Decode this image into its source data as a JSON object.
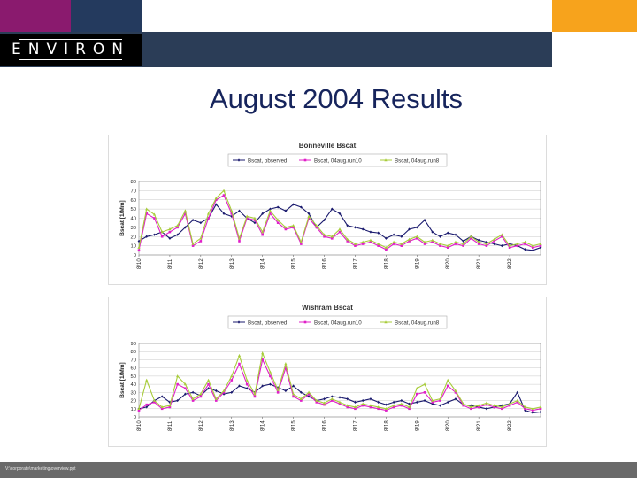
{
  "header": {
    "logo_text": "ENVIRON",
    "colors": {
      "purple": "#8a1a6e",
      "navy": "#2b3d57",
      "orange": "#f7a31c"
    }
  },
  "slide": {
    "title": "August 2004 Results"
  },
  "footer": {
    "path": "V:\\corporate\\marketing\\overview.ppt"
  },
  "chart_data": [
    {
      "type": "line",
      "title": "Bonneville Bscat",
      "ylabel": "Bscat [1/Mm]",
      "xlabel": "",
      "ylim": [
        0,
        80
      ],
      "yticks": [
        0,
        10,
        20,
        30,
        40,
        50,
        60,
        70,
        80
      ],
      "xlim": [
        0,
        13
      ],
      "xticks": [
        "8/10",
        "8/11",
        "8/12",
        "8/13",
        "8/14",
        "8/15",
        "8/16",
        "8/17",
        "8/18",
        "8/19",
        "8/20",
        "8/21",
        "8/22"
      ],
      "legend_position": "top",
      "series": [
        {
          "name": "Bscat, observed",
          "color": "#1a1a6e",
          "marker": "diamond",
          "x": [
            0,
            0.25,
            0.5,
            0.75,
            1,
            1.25,
            1.5,
            1.75,
            2,
            2.25,
            2.5,
            2.75,
            3,
            3.25,
            3.5,
            3.75,
            4,
            4.25,
            4.5,
            4.75,
            5,
            5.25,
            5.5,
            5.75,
            6,
            6.25,
            6.5,
            6.75,
            7,
            7.25,
            7.5,
            7.75,
            8,
            8.25,
            8.5,
            8.75,
            9,
            9.25,
            9.5,
            9.75,
            10,
            10.25,
            10.5,
            10.75,
            11,
            11.25,
            11.5,
            11.75,
            12,
            12.25,
            12.5,
            12.75,
            13
          ],
          "y": [
            15,
            20,
            22,
            25,
            18,
            22,
            30,
            38,
            35,
            40,
            55,
            45,
            42,
            48,
            40,
            35,
            45,
            50,
            52,
            48,
            55,
            52,
            45,
            30,
            38,
            50,
            45,
            32,
            30,
            28,
            25,
            24,
            18,
            22,
            20,
            28,
            30,
            38,
            25,
            20,
            24,
            22,
            15,
            20,
            16,
            14,
            12,
            10,
            12,
            10,
            6,
            5,
            8
          ]
        },
        {
          "name": "Bscat, 04aug.run10",
          "color": "#e020c8",
          "marker": "square",
          "x": [
            0,
            0.25,
            0.5,
            0.75,
            1,
            1.25,
            1.5,
            1.75,
            2,
            2.25,
            2.5,
            2.75,
            3,
            3.25,
            3.5,
            3.75,
            4,
            4.25,
            4.5,
            4.75,
            5,
            5.25,
            5.5,
            5.75,
            6,
            6.25,
            6.5,
            6.75,
            7,
            7.25,
            7.5,
            7.75,
            8,
            8.25,
            8.5,
            8.75,
            9,
            9.25,
            9.5,
            9.75,
            10,
            10.25,
            10.5,
            10.75,
            11,
            11.25,
            11.5,
            11.75,
            12,
            12.25,
            12.5,
            12.75,
            13
          ],
          "y": [
            5,
            45,
            40,
            20,
            25,
            30,
            45,
            10,
            15,
            40,
            60,
            65,
            45,
            15,
            40,
            38,
            22,
            45,
            35,
            28,
            30,
            12,
            40,
            30,
            20,
            18,
            25,
            15,
            10,
            12,
            14,
            10,
            6,
            12,
            10,
            15,
            18,
            12,
            14,
            10,
            8,
            12,
            10,
            18,
            12,
            10,
            15,
            20,
            8,
            10,
            12,
            8,
            10
          ]
        },
        {
          "name": "Bscat, 04aug.run8",
          "color": "#a8cc3a",
          "marker": "triangle",
          "x": [
            0,
            0.25,
            0.5,
            0.75,
            1,
            1.25,
            1.5,
            1.75,
            2,
            2.25,
            2.5,
            2.75,
            3,
            3.25,
            3.5,
            3.75,
            4,
            4.25,
            4.5,
            4.75,
            5,
            5.25,
            5.5,
            5.75,
            6,
            6.25,
            6.5,
            6.75,
            7,
            7.25,
            7.5,
            7.75,
            8,
            8.25,
            8.5,
            8.75,
            9,
            9.25,
            9.5,
            9.75,
            10,
            10.25,
            10.5,
            10.75,
            11,
            11.25,
            11.5,
            11.75,
            12,
            12.25,
            12.5,
            12.75,
            13
          ],
          "y": [
            8,
            50,
            44,
            25,
            28,
            32,
            48,
            12,
            18,
            45,
            62,
            70,
            48,
            18,
            42,
            40,
            25,
            48,
            38,
            30,
            32,
            14,
            42,
            32,
            22,
            20,
            28,
            17,
            12,
            14,
            16,
            12,
            8,
            14,
            12,
            17,
            20,
            14,
            16,
            12,
            10,
            14,
            12,
            20,
            14,
            12,
            17,
            22,
            10,
            12,
            14,
            10,
            12
          ]
        }
      ]
    },
    {
      "type": "line",
      "title": "Wishram Bscat",
      "ylabel": "Bscat [1/Mm]",
      "xlabel": "",
      "ylim": [
        0,
        90
      ],
      "yticks": [
        0,
        10,
        20,
        30,
        40,
        50,
        60,
        70,
        80,
        90
      ],
      "xlim": [
        0,
        13
      ],
      "xticks": [
        "8/10",
        "8/11",
        "8/12",
        "8/13",
        "8/14",
        "8/15",
        "8/16",
        "8/17",
        "8/18",
        "8/19",
        "8/20",
        "8/21",
        "8/22"
      ],
      "legend_position": "top",
      "series": [
        {
          "name": "Bscat, observed",
          "color": "#1a1a6e",
          "marker": "diamond",
          "x": [
            0,
            0.25,
            0.5,
            0.75,
            1,
            1.25,
            1.5,
            1.75,
            2,
            2.25,
            2.5,
            2.75,
            3,
            3.25,
            3.5,
            3.75,
            4,
            4.25,
            4.5,
            4.75,
            5,
            5.25,
            5.5,
            5.75,
            6,
            6.25,
            6.5,
            6.75,
            7,
            7.25,
            7.5,
            7.75,
            8,
            8.25,
            8.5,
            8.75,
            9,
            9.25,
            9.5,
            9.75,
            10,
            10.25,
            10.5,
            10.75,
            11,
            11.25,
            11.5,
            11.75,
            12,
            12.25,
            12.5,
            12.75,
            13
          ],
          "y": [
            10,
            12,
            20,
            25,
            18,
            20,
            28,
            30,
            26,
            35,
            32,
            28,
            30,
            38,
            35,
            30,
            38,
            40,
            36,
            32,
            38,
            30,
            25,
            20,
            22,
            25,
            24,
            22,
            18,
            20,
            22,
            18,
            15,
            18,
            20,
            16,
            18,
            20,
            16,
            14,
            18,
            22,
            15,
            14,
            12,
            10,
            12,
            14,
            16,
            30,
            8,
            5,
            6
          ]
        },
        {
          "name": "Bscat, 04aug.run10",
          "color": "#e020c8",
          "marker": "square",
          "x": [
            0,
            0.25,
            0.5,
            0.75,
            1,
            1.25,
            1.5,
            1.75,
            2,
            2.25,
            2.5,
            2.75,
            3,
            3.25,
            3.5,
            3.75,
            4,
            4.25,
            4.5,
            4.75,
            5,
            5.25,
            5.5,
            5.75,
            6,
            6.25,
            6.5,
            6.75,
            7,
            7.25,
            7.5,
            7.75,
            8,
            8.25,
            8.5,
            8.75,
            9,
            9.25,
            9.5,
            9.75,
            10,
            10.25,
            10.5,
            10.75,
            11,
            11.25,
            11.5,
            11.75,
            12,
            12.25,
            12.5,
            12.75,
            13
          ],
          "y": [
            8,
            15,
            18,
            10,
            12,
            40,
            35,
            20,
            25,
            40,
            20,
            30,
            45,
            65,
            40,
            25,
            70,
            50,
            30,
            60,
            25,
            20,
            28,
            18,
            15,
            20,
            16,
            12,
            10,
            14,
            12,
            10,
            8,
            12,
            14,
            10,
            28,
            30,
            18,
            20,
            38,
            30,
            14,
            10,
            12,
            15,
            12,
            10,
            14,
            18,
            10,
            8,
            10
          ]
        },
        {
          "name": "Bscat, 04aug.run8",
          "color": "#a8cc3a",
          "marker": "triangle",
          "x": [
            0,
            0.25,
            0.5,
            0.75,
            1,
            1.25,
            1.5,
            1.75,
            2,
            2.25,
            2.5,
            2.75,
            3,
            3.25,
            3.5,
            3.75,
            4,
            4.25,
            4.5,
            4.75,
            5,
            5.25,
            5.5,
            5.75,
            6,
            6.25,
            6.5,
            6.75,
            7,
            7.25,
            7.5,
            7.75,
            8,
            8.25,
            8.5,
            8.75,
            9,
            9.25,
            9.5,
            9.75,
            10,
            10.25,
            10.5,
            10.75,
            11,
            11.25,
            11.5,
            11.75,
            12,
            12.25,
            12.5,
            12.75,
            13
          ],
          "y": [
            10,
            45,
            20,
            12,
            14,
            50,
            40,
            22,
            28,
            45,
            22,
            32,
            50,
            75,
            45,
            28,
            78,
            55,
            33,
            65,
            28,
            22,
            30,
            20,
            17,
            22,
            18,
            14,
            12,
            16,
            14,
            12,
            10,
            14,
            16,
            12,
            35,
            40,
            20,
            22,
            45,
            32,
            16,
            12,
            14,
            17,
            14,
            12,
            16,
            20,
            12,
            10,
            12
          ]
        }
      ]
    }
  ]
}
